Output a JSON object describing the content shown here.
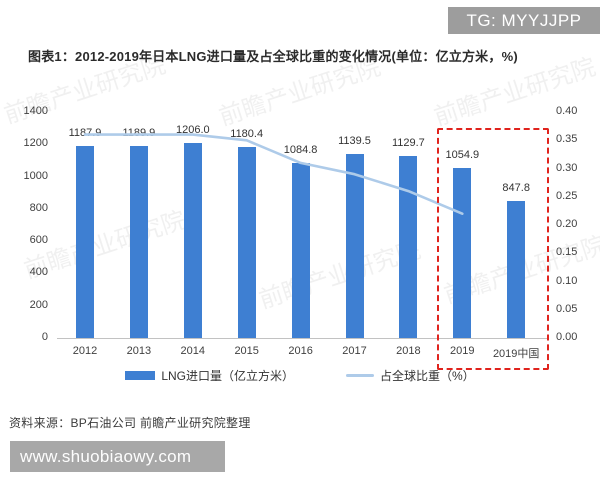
{
  "badge": {
    "text": "TG: MYYJJPP"
  },
  "title": {
    "text": "图表1：2012-2019年日本LNG进口量及占全球比重的变化情况(单位：亿立方米，%)"
  },
  "chart_data": {
    "type": "bar",
    "title": "2012-2019年日本LNG进口量及占全球比重的变化情况",
    "categories": [
      "2012",
      "2013",
      "2014",
      "2015",
      "2016",
      "2017",
      "2018",
      "2019",
      "2019中国"
    ],
    "series": [
      {
        "name": "LNG进口量（亿立方米）",
        "type": "bar",
        "axis": "left",
        "color": "#3e7fd2",
        "values": [
          1187.9,
          1189.9,
          1206.0,
          1180.4,
          1084.8,
          1139.5,
          1129.7,
          1054.9,
          847.8
        ]
      },
      {
        "name": "占全球比重（%）",
        "type": "line",
        "axis": "right",
        "color": "#aecbe9",
        "values": [
          0.36,
          0.36,
          0.36,
          0.35,
          0.31,
          0.29,
          0.26,
          0.22,
          null
        ]
      }
    ],
    "left_axis": {
      "min": 0,
      "max": 1400,
      "ticks": [
        "1400",
        "1200",
        "1000",
        "800",
        "600",
        "400",
        "200",
        "0"
      ]
    },
    "right_axis": {
      "min": 0,
      "max": 0.4,
      "ticks": [
        "0.40",
        "0.35",
        "0.30",
        "0.25",
        "0.20",
        "0.15",
        "0.10",
        "0.05",
        "0.00"
      ]
    },
    "grid": false,
    "legend_position": "bottom",
    "highlight_box": {
      "from_category": "2019",
      "to_category": "2019中国",
      "color": "#e0231d"
    }
  },
  "legend": {
    "bar_label": "LNG进口量（亿立方米）",
    "line_label": "占全球比重（%）"
  },
  "source": {
    "text": "资料来源：BP石油公司 前瞻产业研究院整理"
  },
  "watermark": {
    "text": "前瞻产业研究院",
    "site_url": "www.shuobiaowy.com"
  }
}
